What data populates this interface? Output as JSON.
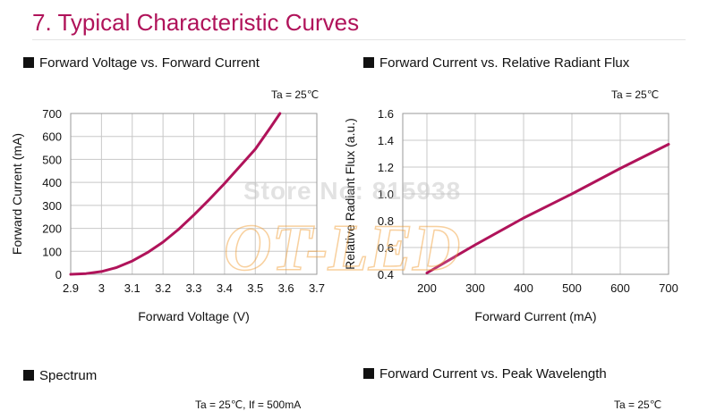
{
  "header": {
    "title": "7. Typical Characteristic Curves"
  },
  "sections": [
    {
      "title": "Forward Voltage vs. Forward Current",
      "condition": "Ta = 25℃"
    },
    {
      "title": "Forward Current vs. Relative Radiant Flux",
      "condition": "Ta = 25℃"
    },
    {
      "title": "Spectrum",
      "condition": "Ta = 25℃,  If = 500mA"
    },
    {
      "title": "Forward Current vs. Peak Wavelength",
      "condition": "Ta = 25℃"
    }
  ],
  "watermark": {
    "store": "Store No: 815938",
    "logo": "OT-LED"
  },
  "colors": {
    "accent": "#b0135a",
    "curve": "#b0135a",
    "grid": "#c8c8c8"
  },
  "chart_data": [
    {
      "type": "line",
      "title": "Forward Voltage vs. Forward Current",
      "xlabel": "Forward Voltage (V)",
      "ylabel": "Forward Current (mA)",
      "xlim": [
        2.9,
        3.7
      ],
      "ylim": [
        0,
        700
      ],
      "xticks": [
        "2.9",
        "3",
        "3.1",
        "3.2",
        "3.3",
        "3.4",
        "3.5",
        "3.6",
        "3.7"
      ],
      "yticks": [
        "0",
        "100",
        "200",
        "300",
        "400",
        "500",
        "600",
        "700"
      ],
      "grid": true,
      "series": [
        {
          "x": [
            2.9,
            2.95,
            3.0,
            3.05,
            3.1,
            3.15,
            3.2,
            3.25,
            3.3,
            3.35,
            3.4,
            3.45,
            3.5,
            3.55,
            3.58
          ],
          "y": [
            0,
            3,
            12,
            30,
            58,
            95,
            140,
            195,
            258,
            325,
            395,
            470,
            545,
            640,
            700
          ]
        }
      ]
    },
    {
      "type": "line",
      "title": "Forward Current vs. Relative Radiant Flux",
      "xlabel": "Forward Current (mA)",
      "ylabel": "Relative Radiant Flux (a.u.)",
      "xlim": [
        150,
        700
      ],
      "ylim": [
        0.4,
        1.6
      ],
      "xticks": [
        "200",
        "300",
        "400",
        "500",
        "600",
        "700"
      ],
      "yticks": [
        "0.4",
        "0.6",
        "0.8",
        "1.0",
        "1.2",
        "1.4",
        "1.6"
      ],
      "grid": true,
      "series": [
        {
          "x": [
            200,
            300,
            400,
            500,
            600,
            700
          ],
          "y": [
            0.41,
            0.62,
            0.82,
            1.0,
            1.19,
            1.37
          ]
        }
      ]
    }
  ]
}
